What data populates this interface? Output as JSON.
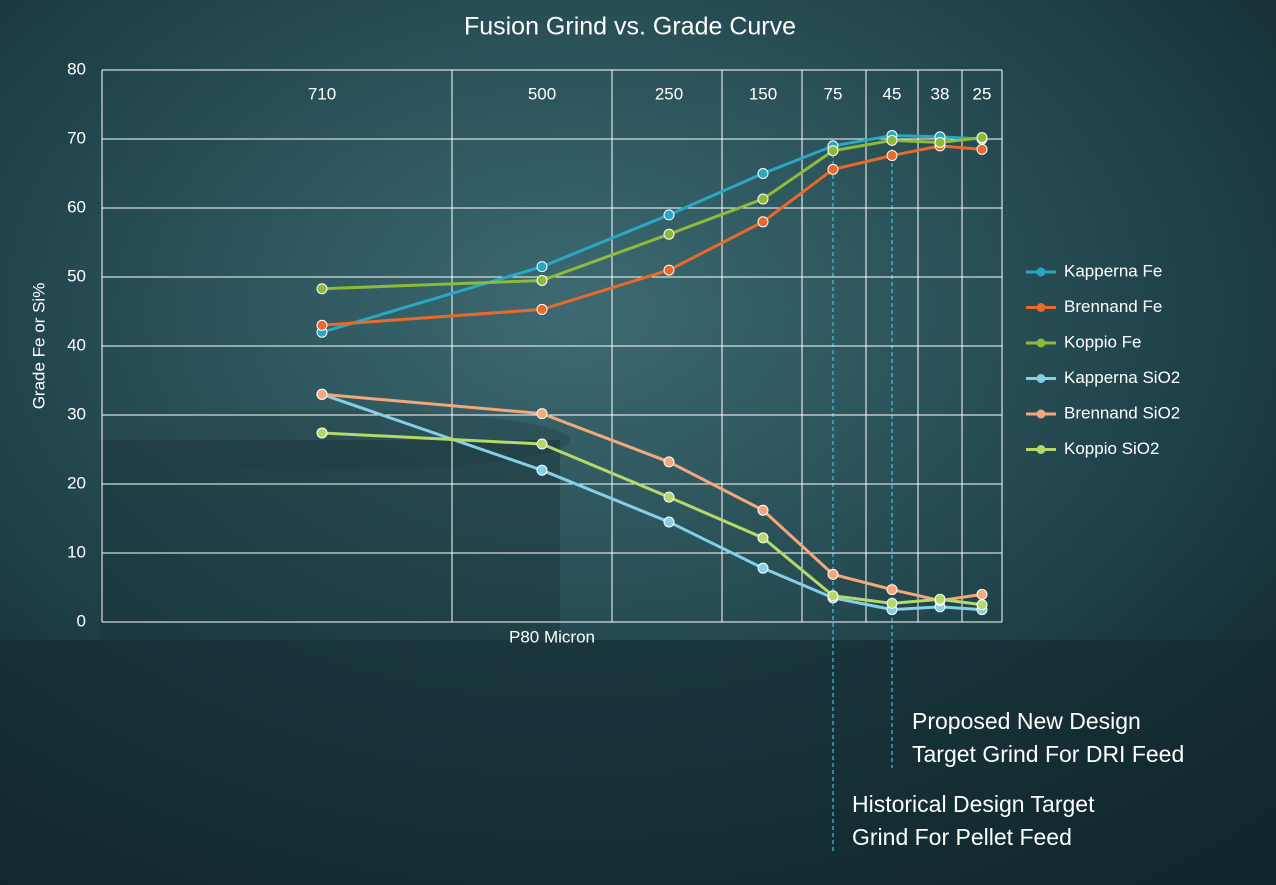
{
  "chart_data": {
    "type": "line",
    "title": "Fusion Grind vs. Grade Curve",
    "x_label": "P80 Micron",
    "y_label": "Grade Fe or Si%",
    "categories": [
      "710",
      "500",
      "250",
      "150",
      "75",
      "45",
      "38",
      "25"
    ],
    "ylim": [
      0,
      80
    ],
    "yticks": [
      0,
      10,
      20,
      30,
      40,
      50,
      60,
      70,
      80
    ],
    "grid": true,
    "legend": "right",
    "series": [
      {
        "name": "Kapperna Fe",
        "color": "#2aa7c3",
        "values": [
          42,
          51.5,
          59,
          65,
          69,
          70.5,
          70.3,
          70
        ]
      },
      {
        "name": "Brennand Fe",
        "color": "#e8692a",
        "values": [
          43,
          45.3,
          51,
          58,
          65.6,
          67.6,
          69,
          68.5
        ]
      },
      {
        "name": "Koppio Fe",
        "color": "#8dba3a",
        "values": [
          48.3,
          49.5,
          56.2,
          61.3,
          68.3,
          69.8,
          69.5,
          70.2
        ]
      },
      {
        "name": "Kapperna SiO2",
        "color": "#86cfe6",
        "values": [
          33,
          22,
          14.5,
          7.8,
          3.5,
          1.8,
          2.2,
          1.8
        ]
      },
      {
        "name": "Brennand SiO2",
        "color": "#f4a77a",
        "values": [
          33,
          30.2,
          23.2,
          16.2,
          6.9,
          4.7,
          3.1,
          4.0
        ]
      },
      {
        "name": "Koppio SiO2",
        "color": "#b4d86a",
        "values": [
          27.4,
          25.8,
          18.1,
          12.2,
          3.8,
          2.7,
          3.3,
          2.5
        ]
      }
    ],
    "annotations": [
      "Proposed New Design",
      "Target Grind For DRI Feed",
      "Historical Design Target",
      "Grind For Pellet Feed"
    ]
  }
}
